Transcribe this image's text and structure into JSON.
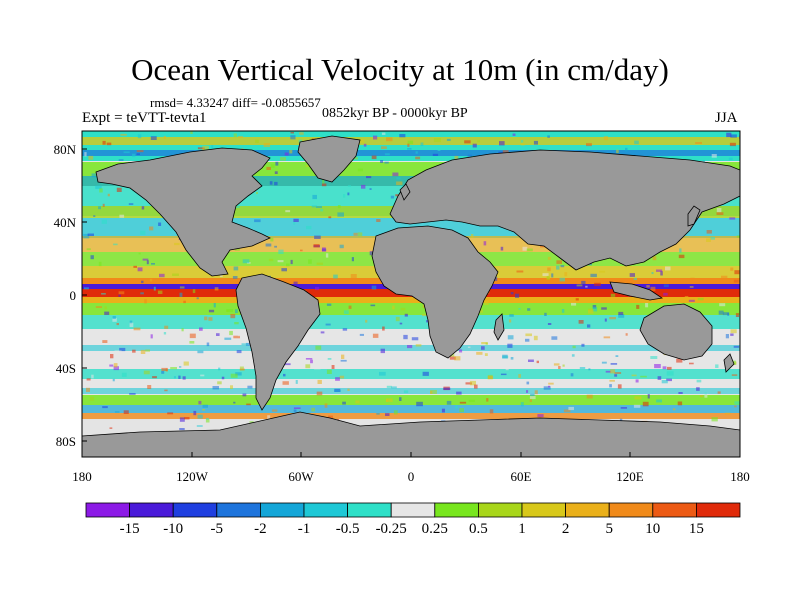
{
  "title": "Ocean Vertical Velocity at 10m (in cm/day)",
  "stats_line": "rmsd= 4.33247 diff= -0.0855657",
  "period": "0852kyr BP - 0000kyr BP",
  "experiment": "Expt = teVTT-tevta1",
  "season": "JJA",
  "lat_ticks": [
    "80N",
    "40N",
    "0",
    "40S",
    "80S"
  ],
  "lon_ticks": [
    "180",
    "120W",
    "60W",
    "0",
    "60E",
    "120E",
    "180"
  ],
  "colorbar": {
    "labels": [
      "-15",
      "-10",
      "-5",
      "-2",
      "-1",
      "-0.5",
      "-0.25",
      "0.25",
      "0.5",
      "1",
      "2",
      "5",
      "10",
      "15"
    ],
    "colors": [
      "#8c1ae6",
      "#4a1ad9",
      "#1f3fe0",
      "#1e74dc",
      "#14a6d8",
      "#1ec8d6",
      "#2ee0c8",
      "#e6e6e6",
      "#78e61e",
      "#a8d61a",
      "#d8c81a",
      "#eab01a",
      "#f08a1a",
      "#ec5a14",
      "#e02a0a"
    ]
  },
  "land_color": "#999999"
}
